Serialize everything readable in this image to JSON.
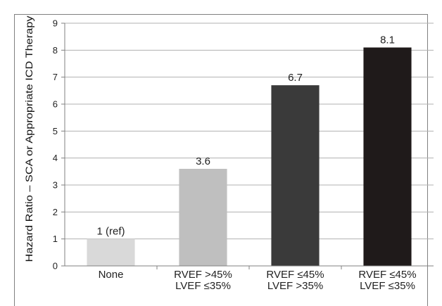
{
  "chart_data": {
    "type": "bar",
    "title": "",
    "xlabel": "",
    "ylabel": "Hazard Ratio – SCA or Appropriate ICD Therapy",
    "ylim": [
      0,
      9
    ],
    "yticks": [
      0,
      1,
      2,
      3,
      4,
      5,
      6,
      7,
      8,
      9
    ],
    "grid": true,
    "legend": "none",
    "categories": [
      [
        "None"
      ],
      [
        "RVEF  >45%",
        "LVEF ≤35%"
      ],
      [
        "RVEF ≤45%",
        "LVEF  >35%"
      ],
      [
        "RVEF ≤45%",
        "LVEF ≤35%"
      ]
    ],
    "values": [
      1,
      3.6,
      6.7,
      8.1
    ],
    "data_labels": [
      "1 (ref)",
      "3.6",
      "6.7",
      "8.1"
    ],
    "colors": [
      "#d9d9d9",
      "#bfbfbf",
      "#3a3a3a",
      "#1f1a1a"
    ]
  }
}
